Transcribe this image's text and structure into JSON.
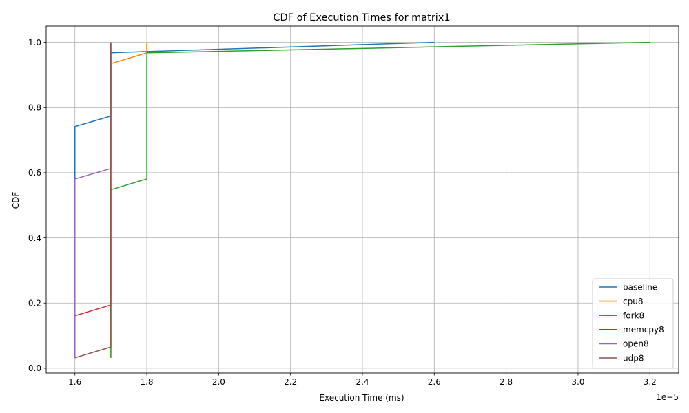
{
  "chart_data": {
    "type": "line",
    "title": "CDF of Execution Times for matrix1",
    "xlabel": "Execution Time (ms)",
    "ylabel": "CDF",
    "x_scale_label": "1e−5",
    "x_scale": 1e-05,
    "xlim": [
      1.52,
      3.28
    ],
    "ylim": [
      -0.015,
      1.05
    ],
    "x_ticks": [
      1.6,
      1.8,
      2.0,
      2.2,
      2.4,
      2.6,
      2.8,
      3.0,
      3.2
    ],
    "x_tick_labels": [
      "1.6",
      "1.8",
      "2.0",
      "2.2",
      "2.4",
      "2.6",
      "2.8",
      "3.0",
      "3.2"
    ],
    "y_ticks": [
      0.0,
      0.2,
      0.4,
      0.6,
      0.8,
      1.0
    ],
    "y_tick_labels": [
      "0.0",
      "0.2",
      "0.4",
      "0.6",
      "0.8",
      "1.0"
    ],
    "grid": true,
    "legend_position": "lower-right",
    "series": [
      {
        "name": "baseline",
        "color": "#1f77b4",
        "x": [
          1.6,
          1.6,
          1.7,
          1.7,
          1.8,
          2.6
        ],
        "y": [
          0.032,
          0.742,
          0.774,
          0.968,
          0.972,
          1.0
        ]
      },
      {
        "name": "cpu8",
        "color": "#ff7f0e",
        "x": [
          1.7,
          1.7,
          1.8,
          1.8
        ],
        "y": [
          0.032,
          0.935,
          0.968,
          1.0
        ]
      },
      {
        "name": "fork8",
        "color": "#2ca02c",
        "x": [
          1.7,
          1.7,
          1.8,
          1.8,
          3.2
        ],
        "y": [
          0.032,
          0.548,
          0.581,
          0.968,
          1.0
        ]
      },
      {
        "name": "memcpy8",
        "color": "#d62728",
        "x": [
          1.6,
          1.6,
          1.7,
          1.7
        ],
        "y": [
          0.032,
          0.161,
          0.194,
          1.0
        ]
      },
      {
        "name": "open8",
        "color": "#9467bd",
        "x": [
          1.6,
          1.6,
          1.7,
          1.7
        ],
        "y": [
          0.032,
          0.581,
          0.613,
          1.0
        ]
      },
      {
        "name": "udp8",
        "color": "#8c564b",
        "x": [
          1.6,
          1.7,
          1.7
        ],
        "y": [
          0.032,
          0.065,
          1.0
        ]
      }
    ]
  }
}
